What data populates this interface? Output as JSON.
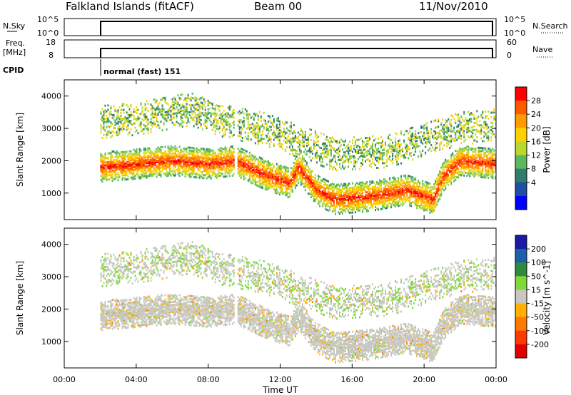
{
  "header": {
    "station": "Falkland Islands (fitACF)",
    "beam": "Beam 00",
    "date": "11/Nov/2010"
  },
  "nsky_panel": {
    "left_label": "N.Sky",
    "left_ticks": [
      "10^5",
      "10^0"
    ],
    "right_ticks": [
      "10^5",
      "10^0"
    ],
    "right_label": "N.Search"
  },
  "freq_panel": {
    "left_label_line1": "Freq.",
    "left_label_line2": "[MHz]",
    "left_ticks": [
      "18",
      "8"
    ],
    "right_ticks": [
      "60",
      "0"
    ],
    "right_label": "Nave"
  },
  "cpid": {
    "label": "CPID",
    "value": "normal (fast) 151"
  },
  "x_axis": {
    "ticks": [
      "00:00",
      "04:00",
      "08:00",
      "12:00",
      "16:00",
      "20:00",
      "00:00"
    ],
    "tick_hours": [
      0,
      4,
      8,
      12,
      16,
      20,
      24
    ],
    "label": "Time UT"
  },
  "power_panel": {
    "ylabel": "Slant Range [km]",
    "y_ticks": [
      "4000",
      "3000",
      "2000",
      "1000"
    ],
    "y_tick_values": [
      4000,
      3000,
      2000,
      1000
    ],
    "colorbar_title": "Power [dB]",
    "colorbar_labels": [
      "28",
      "24",
      "20",
      "16",
      "12",
      "8",
      "4"
    ],
    "colorbar_colors": [
      "#ff0000",
      "#ff5a00",
      "#ff9a00",
      "#ffd000",
      "#b8d830",
      "#5cb85c",
      "#2e7d6e",
      "#1f4fa0",
      "#0000ff"
    ]
  },
  "velocity_panel": {
    "ylabel": "Slant Range [km]",
    "y_ticks": [
      "4000",
      "3000",
      "2000",
      "1000"
    ],
    "y_tick_values": [
      4000,
      3000,
      2000,
      1000
    ],
    "colorbar_title": "Velocity [m s^-1]",
    "colorbar_labels": [
      "200",
      "100",
      "50",
      "15",
      "-15",
      "-50",
      "-100",
      "-200"
    ],
    "colorbar_colors": [
      "#1a1aa8",
      "#1f5fa8",
      "#2e8a3e",
      "#7fd83a",
      "#c8c8c0",
      "#ffb000",
      "#ff7a00",
      "#ff3a00",
      "#e00000"
    ]
  },
  "chart_data": [
    {
      "type": "heatmap",
      "title": "Power",
      "xlabel": "Time UT",
      "ylabel": "Slant Range [km]",
      "xlim_hours": [
        0,
        24
      ],
      "ylim_km": [
        180,
        4500
      ],
      "data_start_hour": 2.0,
      "data_gap_hour": 9.5,
      "scatter_bands": [
        {
          "name": "main",
          "start_hour": 2.0,
          "end_hour": 24,
          "center_km": [
            [
              2,
              1800
            ],
            [
              4,
              1900
            ],
            [
              6,
              2000
            ],
            [
              8,
              1900
            ],
            [
              9.5,
              2000
            ],
            [
              11,
              1600
            ],
            [
              12.5,
              1300
            ],
            [
              13,
              1800
            ],
            [
              14,
              1100
            ],
            [
              15,
              800
            ],
            [
              17,
              900
            ],
            [
              19,
              1100
            ],
            [
              20.5,
              800
            ],
            [
              21,
              1500
            ],
            [
              22,
              2000
            ],
            [
              24,
              1900
            ]
          ],
          "width_km": 450,
          "power_db": 24
        },
        {
          "name": "upper",
          "start_hour": 2.0,
          "end_hour": 24,
          "center_km": [
            [
              2,
              3200
            ],
            [
              4,
              3300
            ],
            [
              7,
              3600
            ],
            [
              9,
              3200
            ],
            [
              11,
              3000
            ],
            [
              15,
              2200
            ],
            [
              18,
              2300
            ],
            [
              22,
              3000
            ],
            [
              24,
              3100
            ]
          ],
          "width_km": 500,
          "power_db": 12
        }
      ],
      "colorbar_range_db": [
        0,
        30
      ]
    },
    {
      "type": "heatmap",
      "title": "Velocity",
      "xlabel": "Time UT",
      "ylabel": "Slant Range [km]",
      "xlim_hours": [
        0,
        24
      ],
      "ylim_km": [
        180,
        4500
      ],
      "dominant_velocity_ms": [
        -15,
        15
      ],
      "colorbar_range_ms": [
        -200,
        200
      ]
    }
  ]
}
